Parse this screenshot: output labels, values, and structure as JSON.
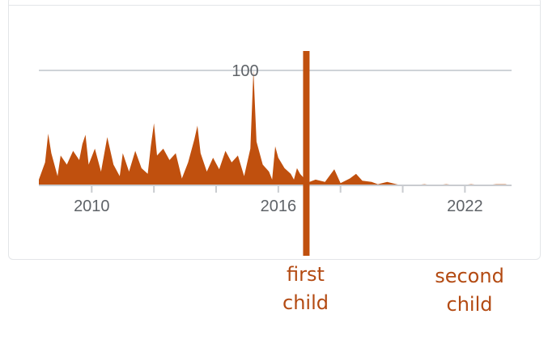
{
  "chart_data": {
    "type": "area",
    "title": "",
    "xlabel": "",
    "ylabel": "",
    "xlim": [
      2008.3,
      2023.5
    ],
    "ylim": [
      0,
      100
    ],
    "grid": true,
    "y_ticks": [
      {
        "value": 100,
        "label": "100"
      }
    ],
    "x_ticks": [
      {
        "value": 2010,
        "label": "2010"
      },
      {
        "value": 2012,
        "label": ""
      },
      {
        "value": 2014,
        "label": ""
      },
      {
        "value": 2016,
        "label": "2016"
      },
      {
        "value": 2018,
        "label": ""
      },
      {
        "value": 2020,
        "label": ""
      },
      {
        "value": 2022,
        "label": "2022"
      }
    ],
    "series": [
      {
        "name": "",
        "color": "#c0500e",
        "points": [
          [
            2008.3,
            5
          ],
          [
            2008.5,
            20
          ],
          [
            2008.6,
            45
          ],
          [
            2008.7,
            28
          ],
          [
            2008.9,
            8
          ],
          [
            2009.0,
            26
          ],
          [
            2009.2,
            18
          ],
          [
            2009.4,
            30
          ],
          [
            2009.6,
            22
          ],
          [
            2009.7,
            36
          ],
          [
            2009.8,
            44
          ],
          [
            2009.9,
            18
          ],
          [
            2010.1,
            32
          ],
          [
            2010.3,
            12
          ],
          [
            2010.5,
            42
          ],
          [
            2010.7,
            18
          ],
          [
            2010.9,
            8
          ],
          [
            2011.0,
            28
          ],
          [
            2011.2,
            12
          ],
          [
            2011.4,
            30
          ],
          [
            2011.6,
            15
          ],
          [
            2011.8,
            10
          ],
          [
            2011.9,
            34
          ],
          [
            2012.0,
            54
          ],
          [
            2012.1,
            26
          ],
          [
            2012.3,
            32
          ],
          [
            2012.5,
            22
          ],
          [
            2012.7,
            28
          ],
          [
            2012.9,
            6
          ],
          [
            2013.1,
            20
          ],
          [
            2013.3,
            40
          ],
          [
            2013.4,
            52
          ],
          [
            2013.5,
            28
          ],
          [
            2013.7,
            12
          ],
          [
            2013.9,
            24
          ],
          [
            2014.1,
            14
          ],
          [
            2014.3,
            30
          ],
          [
            2014.5,
            20
          ],
          [
            2014.7,
            26
          ],
          [
            2014.9,
            8
          ],
          [
            2015.1,
            32
          ],
          [
            2015.2,
            100
          ],
          [
            2015.3,
            38
          ],
          [
            2015.5,
            18
          ],
          [
            2015.7,
            12
          ],
          [
            2015.8,
            5
          ],
          [
            2015.9,
            34
          ],
          [
            2016.0,
            24
          ],
          [
            2016.2,
            15
          ],
          [
            2016.4,
            10
          ],
          [
            2016.5,
            5
          ],
          [
            2016.6,
            15
          ],
          [
            2016.7,
            10
          ],
          [
            2016.9,
            4
          ],
          [
            2017.0,
            3
          ],
          [
            2017.2,
            5
          ],
          [
            2017.5,
            3
          ],
          [
            2017.8,
            14
          ],
          [
            2018.0,
            2
          ],
          [
            2018.3,
            6
          ],
          [
            2018.5,
            10
          ],
          [
            2018.7,
            4
          ],
          [
            2019.0,
            3
          ],
          [
            2019.2,
            1
          ],
          [
            2019.5,
            3
          ],
          [
            2019.8,
            1
          ],
          [
            2020.0,
            0
          ],
          [
            2020.3,
            0
          ],
          [
            2020.7,
            1
          ],
          [
            2021.0,
            0
          ],
          [
            2021.4,
            1
          ],
          [
            2021.8,
            0
          ],
          [
            2022.2,
            1
          ],
          [
            2022.6,
            0
          ],
          [
            2023.0,
            1
          ],
          [
            2023.3,
            1
          ],
          [
            2023.5,
            0
          ]
        ]
      }
    ],
    "markers": [
      {
        "x": 2016.9,
        "label_line1": "first",
        "label_line2": "child"
      },
      {
        "x": 2022.1,
        "label_line1": "second",
        "label_line2": "child"
      }
    ]
  }
}
